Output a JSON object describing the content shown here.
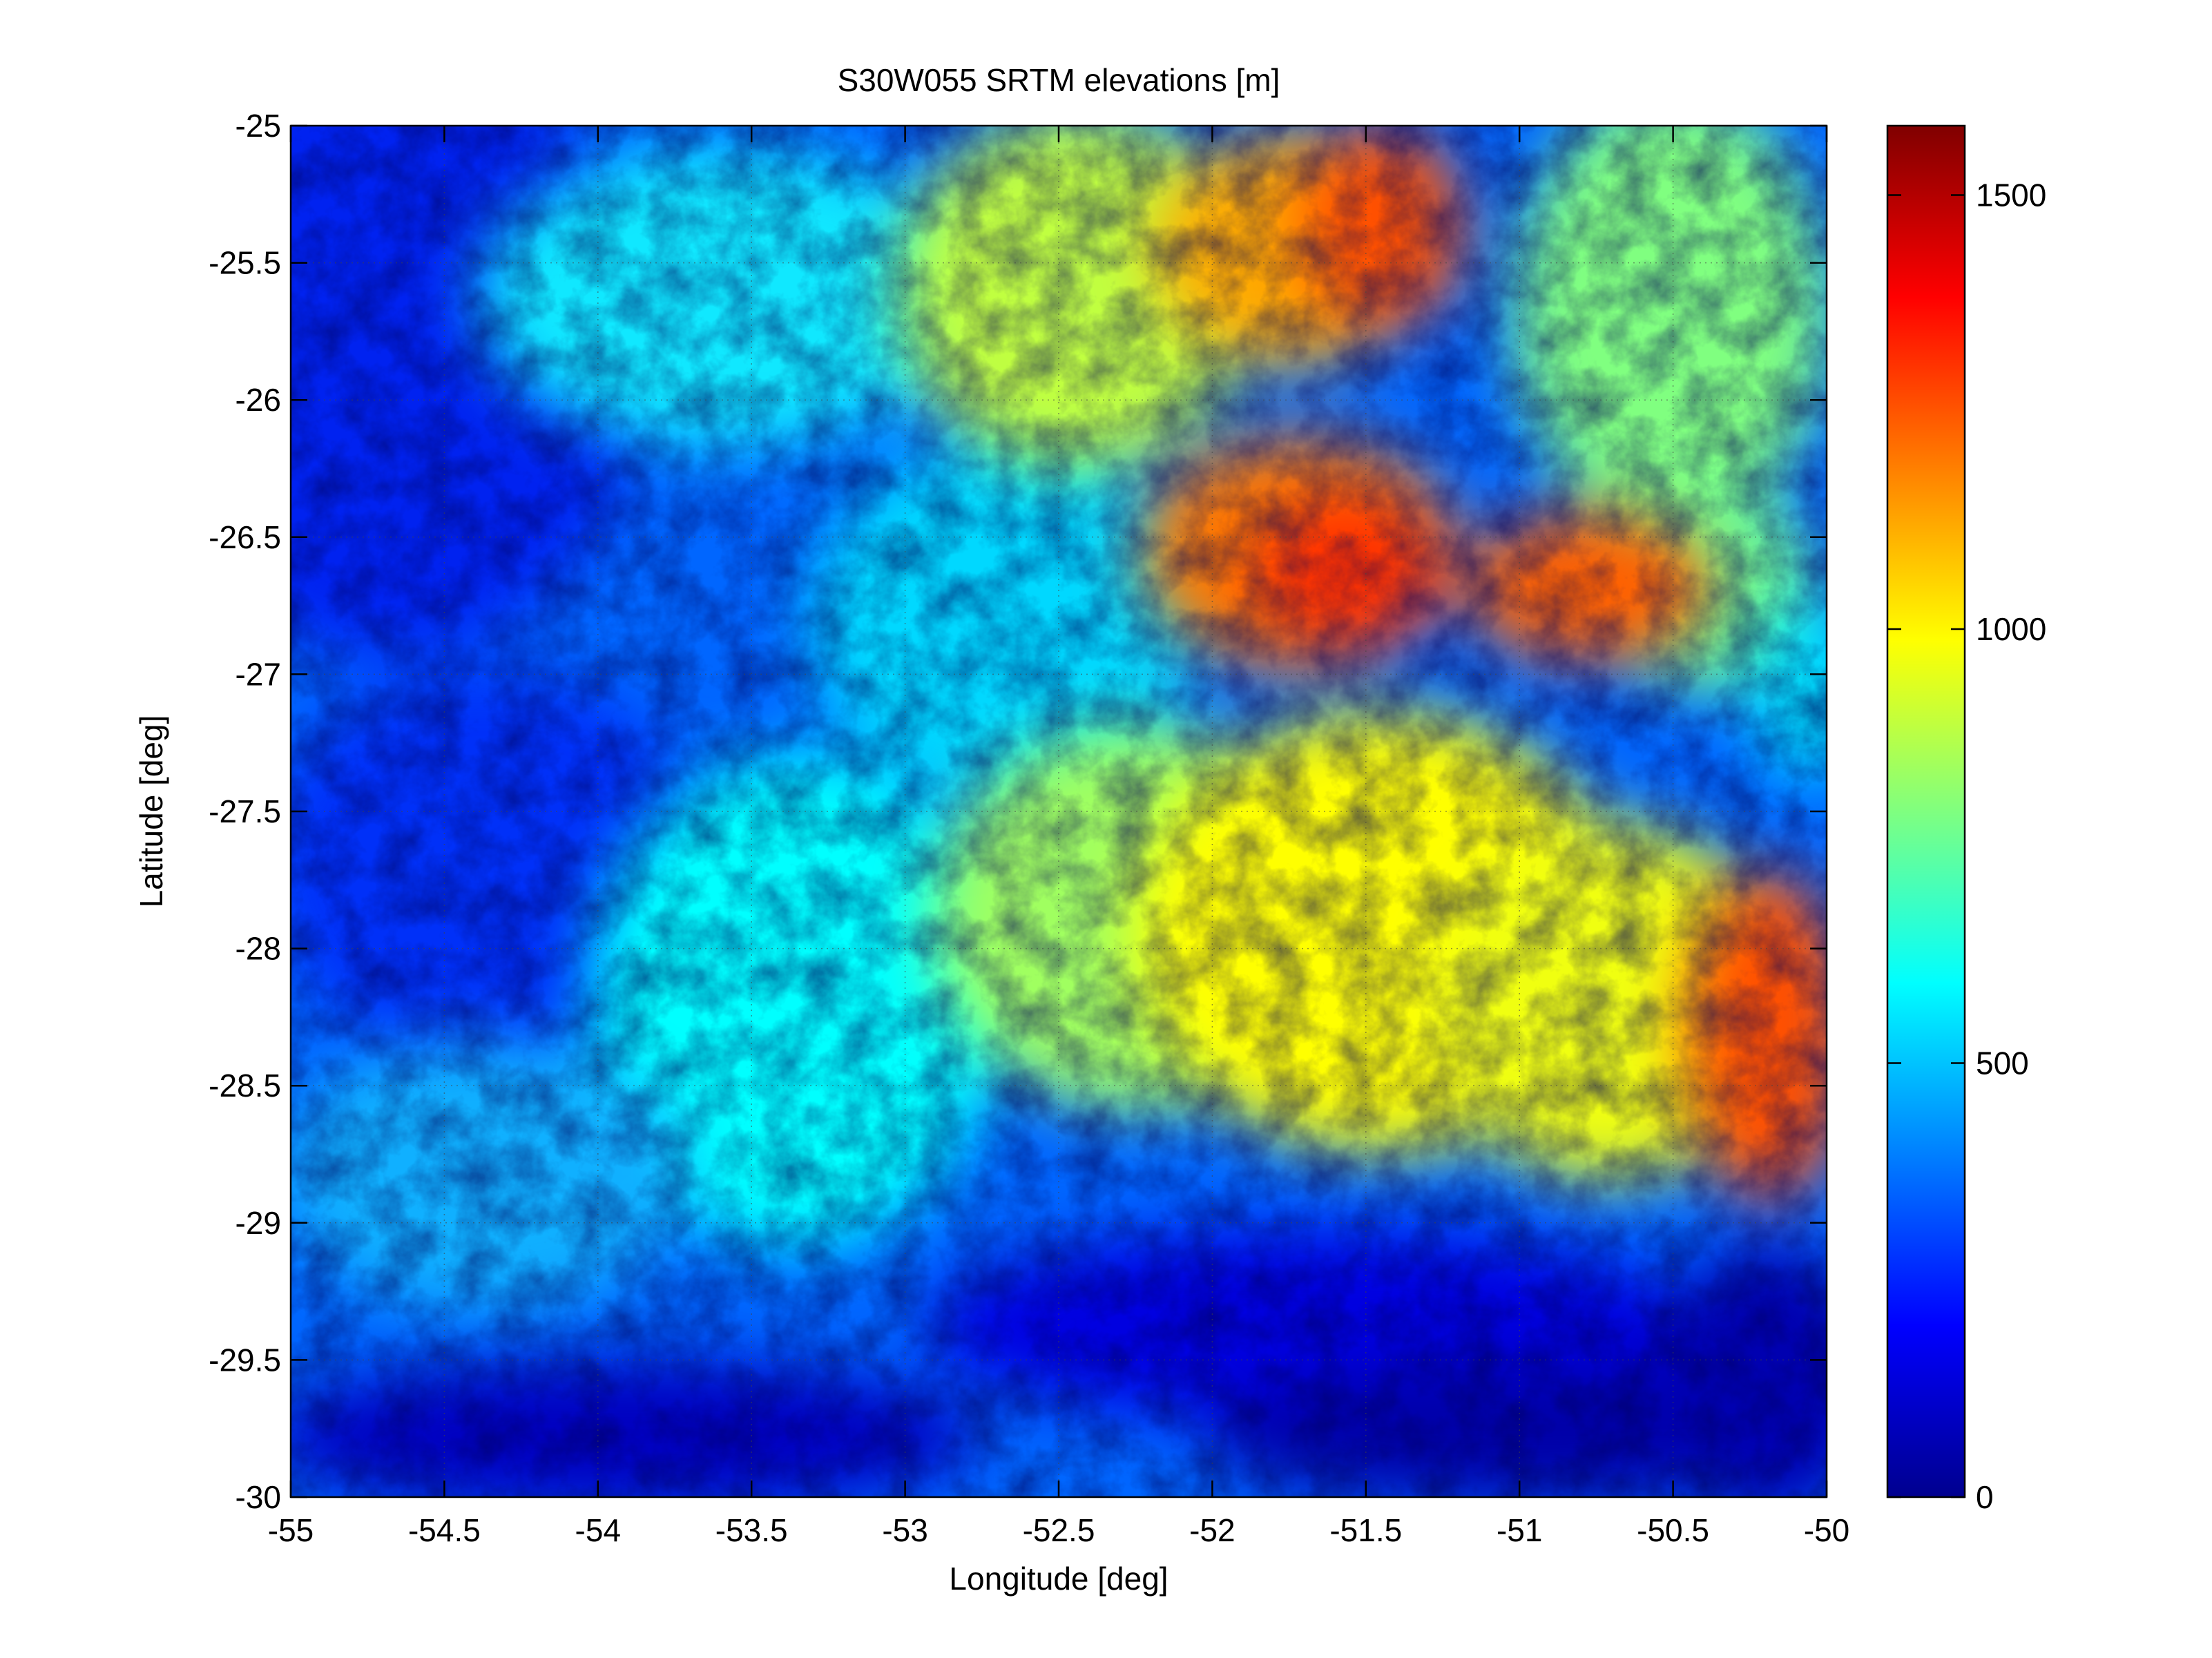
{
  "figure": {
    "title": "S30W055 SRTM elevations [m]",
    "xlabel": "Longitude [deg]",
    "ylabel": "Latitude [deg]",
    "colormap": "jet",
    "grid": true,
    "background": "#ffffff"
  },
  "map": {
    "type": "heatmap",
    "x_range": [
      -55,
      -50
    ],
    "y_range": [
      -30,
      -25
    ],
    "x_ticks": [
      "-55",
      "-54.5",
      "-54",
      "-53.5",
      "-53",
      "-52.5",
      "-52",
      "-51.5",
      "-51",
      "-50.5",
      "-50"
    ],
    "y_ticks": [
      "-25",
      "-25.5",
      "-26",
      "-26.5",
      "-27",
      "-27.5",
      "-28",
      "-28.5",
      "-29",
      "-29.5",
      "-30"
    ],
    "elevation_range_m": [
      0,
      1580
    ]
  },
  "colorbar": {
    "ticks": [
      "0",
      "500",
      "1000",
      "1500"
    ],
    "tick_values": [
      0,
      500,
      1000,
      1500
    ],
    "range": [
      0,
      1580
    ]
  }
}
